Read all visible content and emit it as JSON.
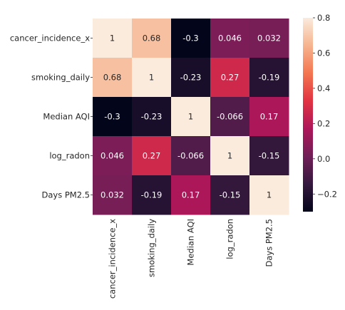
{
  "chart_data": {
    "type": "heatmap",
    "title": "",
    "xlabel": "",
    "ylabel": "",
    "rows": [
      "cancer_incidence_x",
      "smoking_daily",
      "Median AQI",
      "log_radon",
      "Days PM2.5"
    ],
    "cols": [
      "cancer_incidence_x",
      "smoking_daily",
      "Median AQI",
      "log_radon",
      "Days PM2.5"
    ],
    "values": [
      [
        1,
        0.68,
        -0.3,
        0.046,
        0.032
      ],
      [
        0.68,
        1,
        -0.23,
        0.27,
        -0.19
      ],
      [
        -0.3,
        -0.23,
        1,
        -0.066,
        0.17
      ],
      [
        0.046,
        0.27,
        -0.066,
        1,
        -0.15
      ],
      [
        0.032,
        -0.19,
        0.17,
        -0.15,
        1
      ]
    ],
    "annotations": [
      [
        "1",
        "0.68",
        "-0.3",
        "0.046",
        "0.032"
      ],
      [
        "0.68",
        "1",
        "-0.23",
        "0.27",
        "-0.19"
      ],
      [
        "-0.3",
        "-0.23",
        "1",
        "-0.066",
        "0.17"
      ],
      [
        "0.046",
        "0.27",
        "-0.066",
        "1",
        "-0.15"
      ],
      [
        "0.032",
        "-0.19",
        "0.17",
        "-0.15",
        "1"
      ]
    ],
    "colorbar": {
      "range": [
        -0.3,
        0.8
      ],
      "ticks": [
        0.8,
        0.6,
        0.4,
        0.2,
        0.0,
        -0.2
      ],
      "tick_labels": [
        "0.8",
        "0.6",
        "0.4",
        "0.2",
        "0.0",
        "−0.2"
      ]
    },
    "colormap": "rocket",
    "colormap_stops": [
      "#03051a",
      "#35193e",
      "#701f57",
      "#ad1759",
      "#e13342",
      "#f37651",
      "#f6b48f",
      "#faebdd"
    ]
  }
}
